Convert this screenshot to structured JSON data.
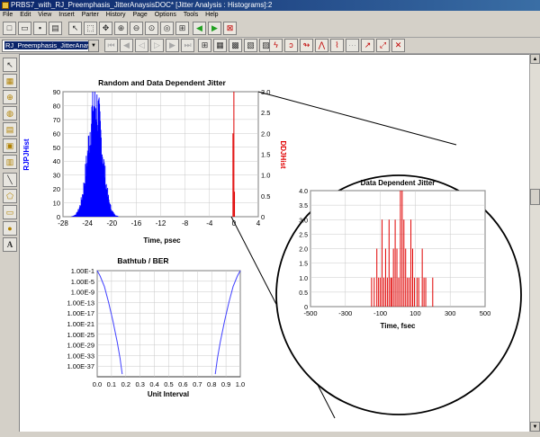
{
  "window": {
    "title": "PRBS7_with_RJ_Preemphasis_JitterAnaysisDOC* [Jitter Analysis : Histograms]:2"
  },
  "menu": [
    "File",
    "Edit",
    "View",
    "Insert",
    "Parter",
    "History",
    "Page",
    "Options",
    "Tools",
    "Help"
  ],
  "toolbar": {
    "view_selector": "RJ_Preemphasis_JitterAnaysis"
  },
  "colors": {
    "rj_series": "#0000ff",
    "ddj_series": "#e00000",
    "bathtub": "#4040ff"
  },
  "icons": {
    "toolbar1": [
      "new-icon",
      "open-icon",
      "save-icon",
      "print-icon",
      "arrow-icon",
      "zoom-box-icon",
      "pan-icon",
      "zoom-in-icon",
      "zoom-out-icon",
      "zoom-x-icon",
      "zoom-y-icon",
      "fit-icon",
      "back-icon",
      "forward-icon",
      "stop-icon"
    ],
    "toolbar2_nav": [
      "first-icon",
      "prev-icon",
      "prev-page-icon",
      "next-page-icon",
      "next-icon",
      "last-icon"
    ],
    "toolbar2_grid": [
      "grid-a-icon",
      "grid-b-icon",
      "grid-c-icon",
      "grid-d-icon",
      "grid-e-icon"
    ],
    "toolbar2_markers": [
      "marker-1-icon",
      "marker-2-icon",
      "marker-3-icon",
      "marker-4-icon",
      "marker-5-icon",
      "marker-6-icon",
      "marker-7-icon",
      "marker-8-icon",
      "marker-9-icon"
    ],
    "left": [
      "select-arrow-icon",
      "table-icon",
      "crosshair-icon",
      "globe-icon",
      "grid-icon",
      "eye-diagram-icon",
      "export-icon",
      "line-icon",
      "polygon-icon",
      "rectangle-icon",
      "ellipse-icon",
      "text-icon"
    ]
  },
  "chart_data": [
    {
      "type": "bar",
      "title": "Random and Data Dependent Jitter",
      "xlabel": "Time, psec",
      "ylabel_left": "RJPJHist",
      "ylabel_right": "DDJHist",
      "xlim": [
        -28,
        4
      ],
      "ylim_left": [
        0,
        90
      ],
      "ylim_right": [
        0,
        3.0
      ],
      "xticks": [
        -28,
        -24,
        -20,
        -16,
        -12,
        -8,
        -4,
        0,
        4
      ],
      "yticks_left": [
        0,
        10,
        20,
        30,
        40,
        50,
        60,
        70,
        80,
        90
      ],
      "yticks_right": [
        "0",
        "0.5",
        "1.0",
        "1.5",
        "2.0",
        "2.5",
        "3.0"
      ],
      "grid": true,
      "series": [
        {
          "name": "RJPJHist",
          "axis": "left",
          "x_center": -22.8,
          "sigma": 1.15,
          "peak": 85
        },
        {
          "name": "DDJHist",
          "axis": "right",
          "x": [
            -0.15,
            0.0,
            0.1
          ],
          "values": [
            2.0,
            3.0,
            0.6
          ]
        }
      ]
    },
    {
      "type": "bar",
      "title": "Data Dependent Jitter",
      "xlabel": "Time, fsec",
      "xlim": [
        -500,
        500
      ],
      "ylim": [
        0,
        4.0
      ],
      "xticks": [
        -500,
        -300,
        -100,
        100,
        300,
        500
      ],
      "yticks": [
        "0",
        "0.5",
        "1.0",
        "1.5",
        "2.0",
        "2.5",
        "3.0",
        "3.5",
        "4.0"
      ],
      "grid": true,
      "x": [
        -150,
        -135,
        -120,
        -110,
        -100,
        -90,
        -80,
        -70,
        -60,
        -50,
        -40,
        -35,
        -25,
        -15,
        -5,
        5,
        15,
        25,
        35,
        45,
        55,
        65,
        75,
        85,
        95,
        110,
        120,
        140,
        150,
        160,
        200
      ],
      "values": [
        1,
        1,
        2,
        1,
        1,
        3,
        1,
        2,
        1,
        3,
        1,
        1,
        2,
        3,
        2,
        1,
        4,
        4,
        3,
        2,
        1,
        1,
        3,
        2,
        1,
        1,
        1,
        2,
        1,
        1,
        1
      ]
    },
    {
      "type": "line",
      "title": "Bathtub / BER",
      "xlabel": "Unit Interval",
      "xlim": [
        0,
        1.0
      ],
      "xticks": [
        "0.0",
        "0.1",
        "0.2",
        "0.3",
        "0.4",
        "0.5",
        "0.6",
        "0.7",
        "0.8",
        "0.9",
        "1.0"
      ],
      "yticks": [
        "1.00E-1",
        "1.00E-5",
        "1.00E-9",
        "1.00E-13",
        "1.00E-17",
        "1.00E-21",
        "1.00E-25",
        "1.00E-29",
        "1.00E-33",
        "1.00E-37"
      ],
      "grid": true,
      "series": [
        {
          "name": "left",
          "x": [
            0.0,
            0.02,
            0.05,
            0.08,
            0.11,
            0.14,
            0.16,
            0.175
          ],
          "y_log10": [
            -1,
            -3,
            -7,
            -13,
            -20,
            -28,
            -34,
            -40
          ]
        },
        {
          "name": "right",
          "x": [
            0.825,
            0.84,
            0.86,
            0.89,
            0.92,
            0.95,
            0.98,
            1.0
          ],
          "y_log10": [
            -40,
            -34,
            -28,
            -20,
            -13,
            -7,
            -3,
            -1
          ]
        }
      ]
    }
  ]
}
